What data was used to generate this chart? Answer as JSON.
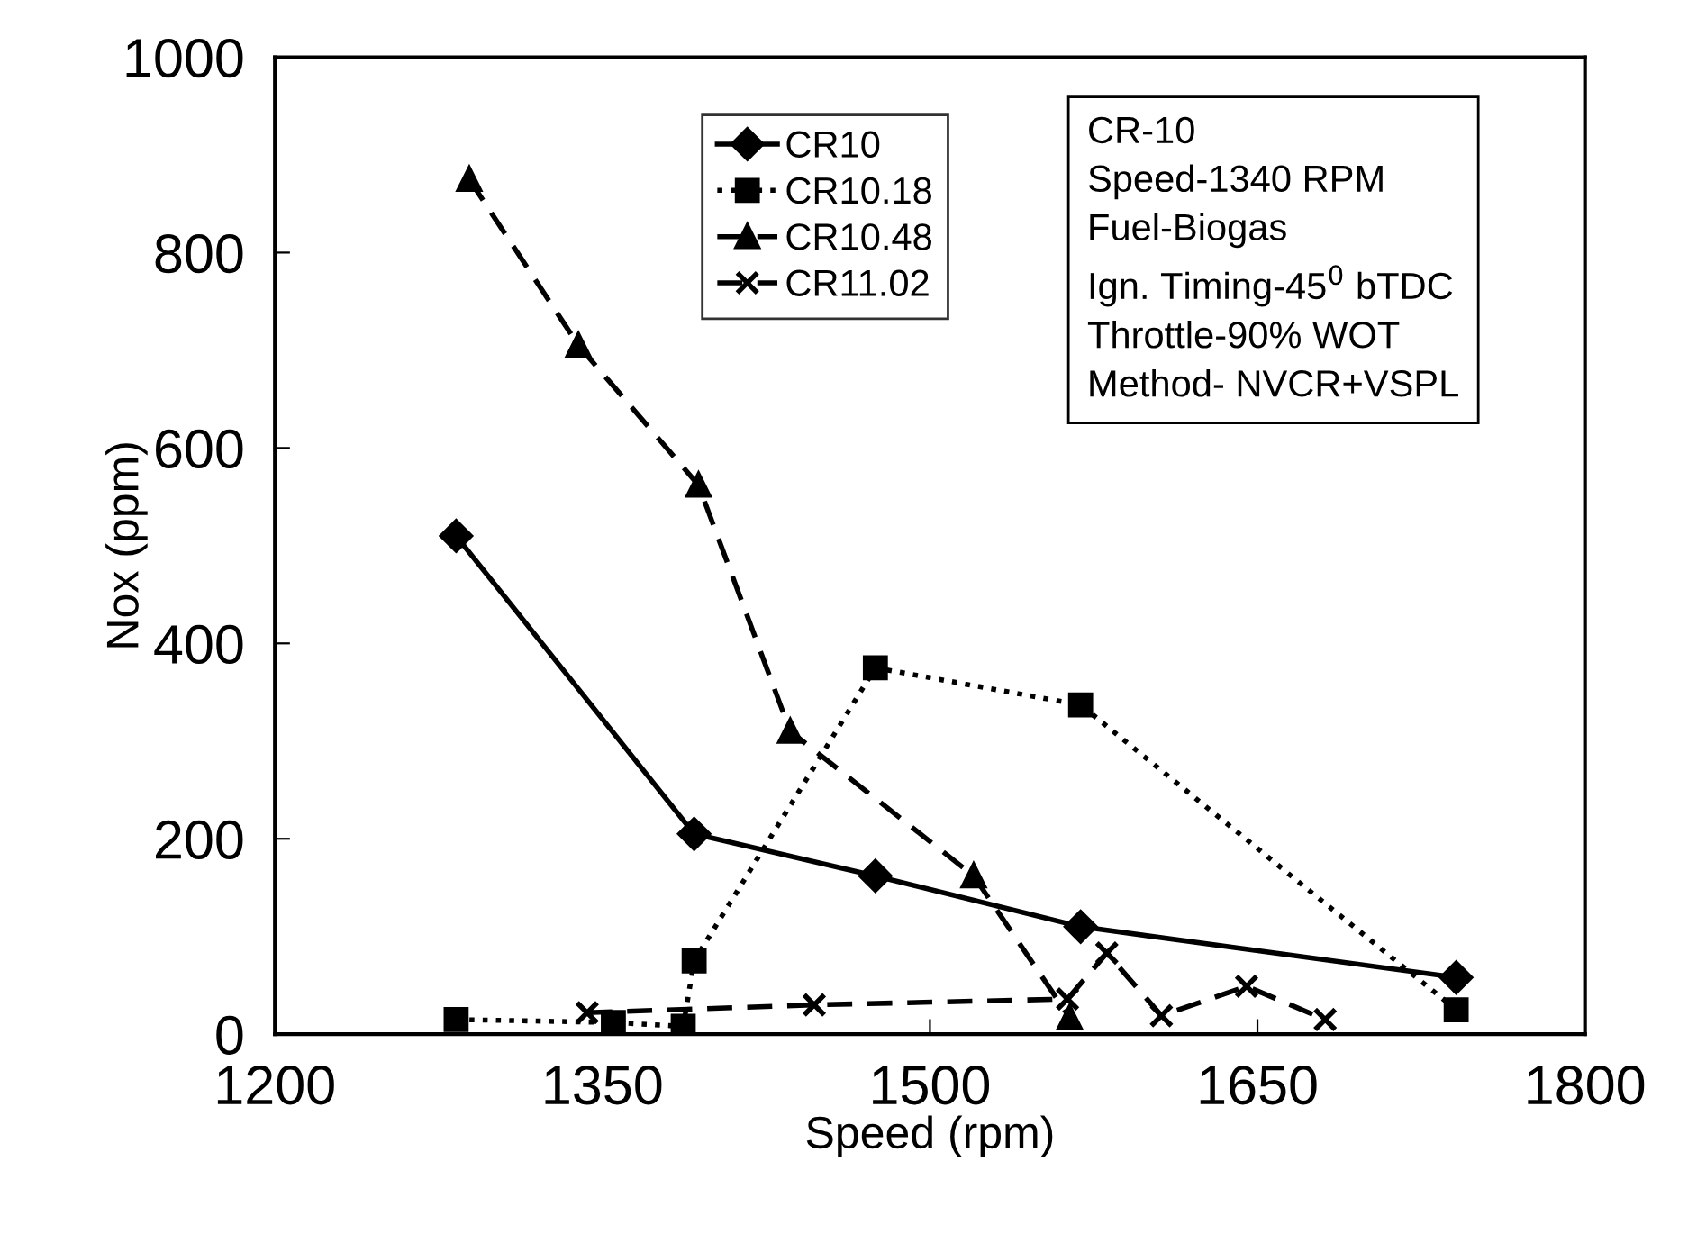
{
  "chart_data": {
    "type": "line",
    "xlabel": "Speed (rpm)",
    "ylabel": "Nox (ppm)",
    "xlim": [
      1200,
      1800
    ],
    "xticks": [
      1200,
      1350,
      1500,
      1650,
      1800
    ],
    "ylim": [
      0,
      1000
    ],
    "yticks": [
      0,
      200,
      400,
      600,
      800,
      1000
    ],
    "grid": false,
    "legend": "top",
    "annotations": [
      "CR-10\nSpeed-1340 RPM\nFuel-Biogas\nIgn. Timing-45$^{0}$ bTDC\nThrottle-90% WOT\nMethod- NVCR+VSPL"
    ],
    "series": [
      {
        "name": "CR10",
        "color": "#000000",
        "marker": "diamond",
        "line_style": "solid",
        "x": [
          1283,
          1392,
          1475,
          1569,
          1741
        ],
        "values": [
          510,
          205,
          162,
          110,
          58
        ]
      },
      {
        "name": "CR10.18",
        "color": "#000000",
        "marker": "square",
        "line_style": "dotted",
        "x": [
          1283,
          1355,
          1387,
          1392,
          1475,
          1569,
          1741
        ],
        "values": [
          15,
          12,
          8,
          75,
          375,
          337,
          25
        ]
      },
      {
        "name": "CR10.48",
        "color": "#000000",
        "marker": "triangle",
        "line_style": "dashed",
        "x": [
          1289,
          1339,
          1394,
          1436,
          1520,
          1564
        ],
        "values": [
          875,
          705,
          562,
          310,
          162,
          17
        ]
      },
      {
        "name": "CR11.02",
        "color": "#000000",
        "marker": "cross",
        "line_style": "dashed",
        "x": [
          1343,
          1447,
          1563,
          1581,
          1606,
          1645,
          1681
        ],
        "values": [
          22,
          30,
          36,
          83,
          19,
          49,
          15
        ]
      }
    ]
  }
}
